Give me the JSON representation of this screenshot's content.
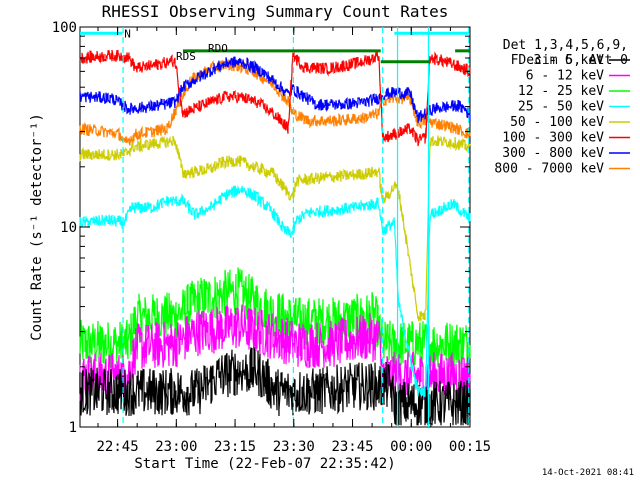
{
  "chart_data": {
    "type": "line",
    "title": "RHESSI Observing Summary Count Rates",
    "xlabel": "Start Time (22-Feb-07 22:35:42)",
    "ylabel": "Count Rate (s⁻¹ detector⁻¹)",
    "y_scale": "log",
    "ylim": [
      1,
      100
    ],
    "xlim_minutes": [
      -0.3,
      99.3
    ],
    "x_ticks": [
      {
        "label": "22:45",
        "minutes": 9.3
      },
      {
        "label": "23:00",
        "minutes": 24.3
      },
      {
        "label": "23:15",
        "minutes": 39.3
      },
      {
        "label": "23:30",
        "minutes": 54.3
      },
      {
        "label": "23:45",
        "minutes": 69.3
      },
      {
        "label": "00:00",
        "minutes": 84.3
      },
      {
        "label": "00:15",
        "minutes": 99.3
      }
    ],
    "y_ticks": [
      {
        "label": "1",
        "value": 1
      },
      {
        "label": "10",
        "value": 10
      },
      {
        "label": "100",
        "value": 100
      }
    ],
    "legend_header": [
      "Det 1,3,4,5,6,9,",
      "FDecim 5, Att 0"
    ],
    "legend_placement": "right",
    "series": [
      {
        "name": "3 - 6 keV",
        "color": "#000000",
        "points": [
          [
            -0.3,
            1.5
          ],
          [
            12,
            1.5
          ],
          [
            24,
            1.5
          ],
          [
            30,
            1.5
          ],
          [
            35,
            1.8
          ],
          [
            40,
            1.9
          ],
          [
            45,
            1.9
          ],
          [
            50,
            1.5
          ],
          [
            60,
            1.5
          ],
          [
            70,
            1.6
          ],
          [
            79,
            1.6
          ],
          [
            80,
            1.3
          ],
          [
            86,
            1.3
          ],
          [
            88,
            1.3
          ],
          [
            99.3,
            1.3
          ]
        ]
      },
      {
        "name": "6 - 12 keV",
        "color": "#ff00ff",
        "points": [
          [
            -0.3,
            1.8
          ],
          [
            12,
            1.8
          ],
          [
            14,
            2.5
          ],
          [
            24,
            2.6
          ],
          [
            30,
            3.0
          ],
          [
            40,
            3.2
          ],
          [
            48,
            2.9
          ],
          [
            55,
            2.6
          ],
          [
            65,
            2.6
          ],
          [
            72,
            2.8
          ],
          [
            76,
            2.8
          ],
          [
            77,
            1.8
          ],
          [
            86,
            1.8
          ],
          [
            99.3,
            1.8
          ]
        ]
      },
      {
        "name": "12 - 25 keV",
        "color": "#00ff00",
        "points": [
          [
            -0.3,
            2.6
          ],
          [
            12,
            2.6
          ],
          [
            14,
            3.5
          ],
          [
            24,
            3.6
          ],
          [
            30,
            4.3
          ],
          [
            40,
            4.8
          ],
          [
            48,
            3.8
          ],
          [
            55,
            3.4
          ],
          [
            65,
            3.4
          ],
          [
            75,
            3.6
          ],
          [
            77,
            2.6
          ],
          [
            86,
            2.6
          ],
          [
            99.3,
            2.6
          ]
        ]
      },
      {
        "name": "25 - 50 keV",
        "color": "#00ffff",
        "points": [
          [
            -0.3,
            10.5
          ],
          [
            7,
            10.8
          ],
          [
            11,
            10.5
          ],
          [
            13,
            12.5
          ],
          [
            18,
            12.5
          ],
          [
            22,
            13.5
          ],
          [
            26,
            13.5
          ],
          [
            29,
            11.5
          ],
          [
            33,
            12.5
          ],
          [
            37,
            14.5
          ],
          [
            41,
            15.5
          ],
          [
            45,
            14
          ],
          [
            49,
            11.8
          ],
          [
            52,
            9.5
          ],
          [
            54,
            9.3
          ],
          [
            55,
            10.8
          ],
          [
            58,
            11.8
          ],
          [
            65,
            12.2
          ],
          [
            70,
            12.5
          ],
          [
            76,
            13.2
          ],
          [
            77,
            9.5
          ],
          [
            79,
            10.3
          ],
          [
            80,
            10.5
          ],
          [
            81,
            4.2
          ],
          [
            85,
            1.8
          ],
          [
            86,
            1.5
          ],
          [
            88,
            1.5
          ],
          [
            89,
            11.5
          ],
          [
            95,
            13
          ],
          [
            99.3,
            11
          ]
        ]
      },
      {
        "name": "50 - 100 keV",
        "color": "#cccc00",
        "points": [
          [
            -0.3,
            23
          ],
          [
            11,
            23
          ],
          [
            13,
            25
          ],
          [
            18,
            26
          ],
          [
            24,
            27
          ],
          [
            26,
            18.5
          ],
          [
            33,
            19.5
          ],
          [
            36,
            21
          ],
          [
            40,
            21.5
          ],
          [
            44,
            20
          ],
          [
            49,
            18.5
          ],
          [
            52,
            15.5
          ],
          [
            54,
            14
          ],
          [
            55,
            17
          ],
          [
            60,
            17.5
          ],
          [
            67,
            18
          ],
          [
            73,
            18.5
          ],
          [
            76,
            19
          ],
          [
            77,
            13.5
          ],
          [
            79,
            15
          ],
          [
            80,
            16
          ],
          [
            81,
            15.5
          ],
          [
            86,
            3.6
          ],
          [
            88,
            3.6
          ],
          [
            89,
            27
          ],
          [
            95,
            26.5
          ],
          [
            99.3,
            25
          ]
        ]
      },
      {
        "name": "100 - 300 keV",
        "color": "#ff0000",
        "points": [
          [
            -0.3,
            70
          ],
          [
            8,
            72
          ],
          [
            12,
            71
          ],
          [
            14,
            62
          ],
          [
            18,
            64
          ],
          [
            24,
            68
          ],
          [
            26,
            37
          ],
          [
            33,
            42
          ],
          [
            37,
            45
          ],
          [
            41,
            44.5
          ],
          [
            45,
            42
          ],
          [
            49,
            37
          ],
          [
            53,
            31
          ],
          [
            54,
            72
          ],
          [
            57,
            63
          ],
          [
            63,
            62
          ],
          [
            69,
            65
          ],
          [
            74,
            69
          ],
          [
            76,
            73
          ],
          [
            77,
            28
          ],
          [
            80,
            29
          ],
          [
            82,
            30
          ],
          [
            84,
            31
          ],
          [
            86,
            27
          ],
          [
            88,
            28
          ],
          [
            89,
            70
          ],
          [
            92,
            68
          ],
          [
            95,
            65
          ],
          [
            99.3,
            60
          ]
        ]
      },
      {
        "name": "300 - 800 keV",
        "color": "#0000ff",
        "points": [
          [
            -0.3,
            45
          ],
          [
            8,
            44
          ],
          [
            12,
            39
          ],
          [
            18,
            40
          ],
          [
            24,
            42
          ],
          [
            26,
            50
          ],
          [
            30,
            56
          ],
          [
            34,
            62
          ],
          [
            38,
            67
          ],
          [
            42,
            66
          ],
          [
            46,
            60
          ],
          [
            50,
            52
          ],
          [
            53,
            46
          ],
          [
            54,
            49
          ],
          [
            60,
            41
          ],
          [
            67,
            41
          ],
          [
            72,
            42
          ],
          [
            76,
            44
          ],
          [
            77,
            46
          ],
          [
            80,
            47
          ],
          [
            84,
            46.5
          ],
          [
            86,
            35
          ],
          [
            90,
            39
          ],
          [
            94,
            40
          ],
          [
            96,
            40.5
          ],
          [
            98,
            39
          ],
          [
            99.3,
            36
          ]
        ]
      },
      {
        "name": "800 - 7000 keV",
        "color": "#ff8000",
        "points": [
          [
            -0.3,
            31
          ],
          [
            6,
            30
          ],
          [
            10,
            29
          ],
          [
            11,
            26
          ],
          [
            14,
            29
          ],
          [
            18,
            30
          ],
          [
            22,
            31
          ],
          [
            24,
            38
          ],
          [
            28,
            54
          ],
          [
            33,
            62
          ],
          [
            37,
            65
          ],
          [
            40,
            64
          ],
          [
            44,
            60
          ],
          [
            49,
            52
          ],
          [
            53,
            42
          ],
          [
            54,
            37
          ],
          [
            58,
            34
          ],
          [
            65,
            34
          ],
          [
            72,
            35
          ],
          [
            76,
            37
          ],
          [
            77,
            43
          ],
          [
            80,
            44
          ],
          [
            84,
            44
          ],
          [
            86,
            33
          ],
          [
            88,
            34
          ],
          [
            91,
            33
          ],
          [
            96,
            31
          ],
          [
            99.3,
            29
          ]
        ]
      }
    ],
    "annotations": {
      "N": {
        "label": "N",
        "color": "#00ffff",
        "y_value": 93,
        "x_range": [
          -0.3,
          10.5
        ]
      },
      "RDO": {
        "label": "RDO",
        "color": "#008000",
        "y_value": 76,
        "x_range": [
          26,
          76.5
        ]
      },
      "RDS": {
        "label": "RDS",
        "color": "#008000",
        "y_value": 73
      },
      "green_bar_right": {
        "color": "#008000",
        "y_value": 76,
        "x_range": [
          95.5,
          99.3
        ]
      },
      "green_bar_mid": {
        "color": "#008000",
        "y_value": 67,
        "x_range": [
          76.5,
          89
        ]
      },
      "cyan_bar_right": {
        "color": "#00ffff",
        "y_value": 93,
        "x_range": [
          80,
          99
        ]
      }
    },
    "vertical_markers": [
      {
        "color": "#00ffff",
        "style": "dashed",
        "x_minutes": 10.7
      },
      {
        "color": "#00ffff",
        "style": "dashed",
        "x_minutes": 54.2
      },
      {
        "color": "#00ffff",
        "style": "dashed",
        "x_minutes": 77.0
      },
      {
        "color": "#00ffff",
        "style": "dashed",
        "x_minutes": 99.0
      },
      {
        "color": "#00ffff",
        "style": "solid",
        "x_minutes": 80.8
      },
      {
        "color": "#00ffff",
        "style": "solid",
        "x_minutes": 88.7
      }
    ],
    "footer_date": "14-Oct-2021 08:41",
    "grid": false
  }
}
